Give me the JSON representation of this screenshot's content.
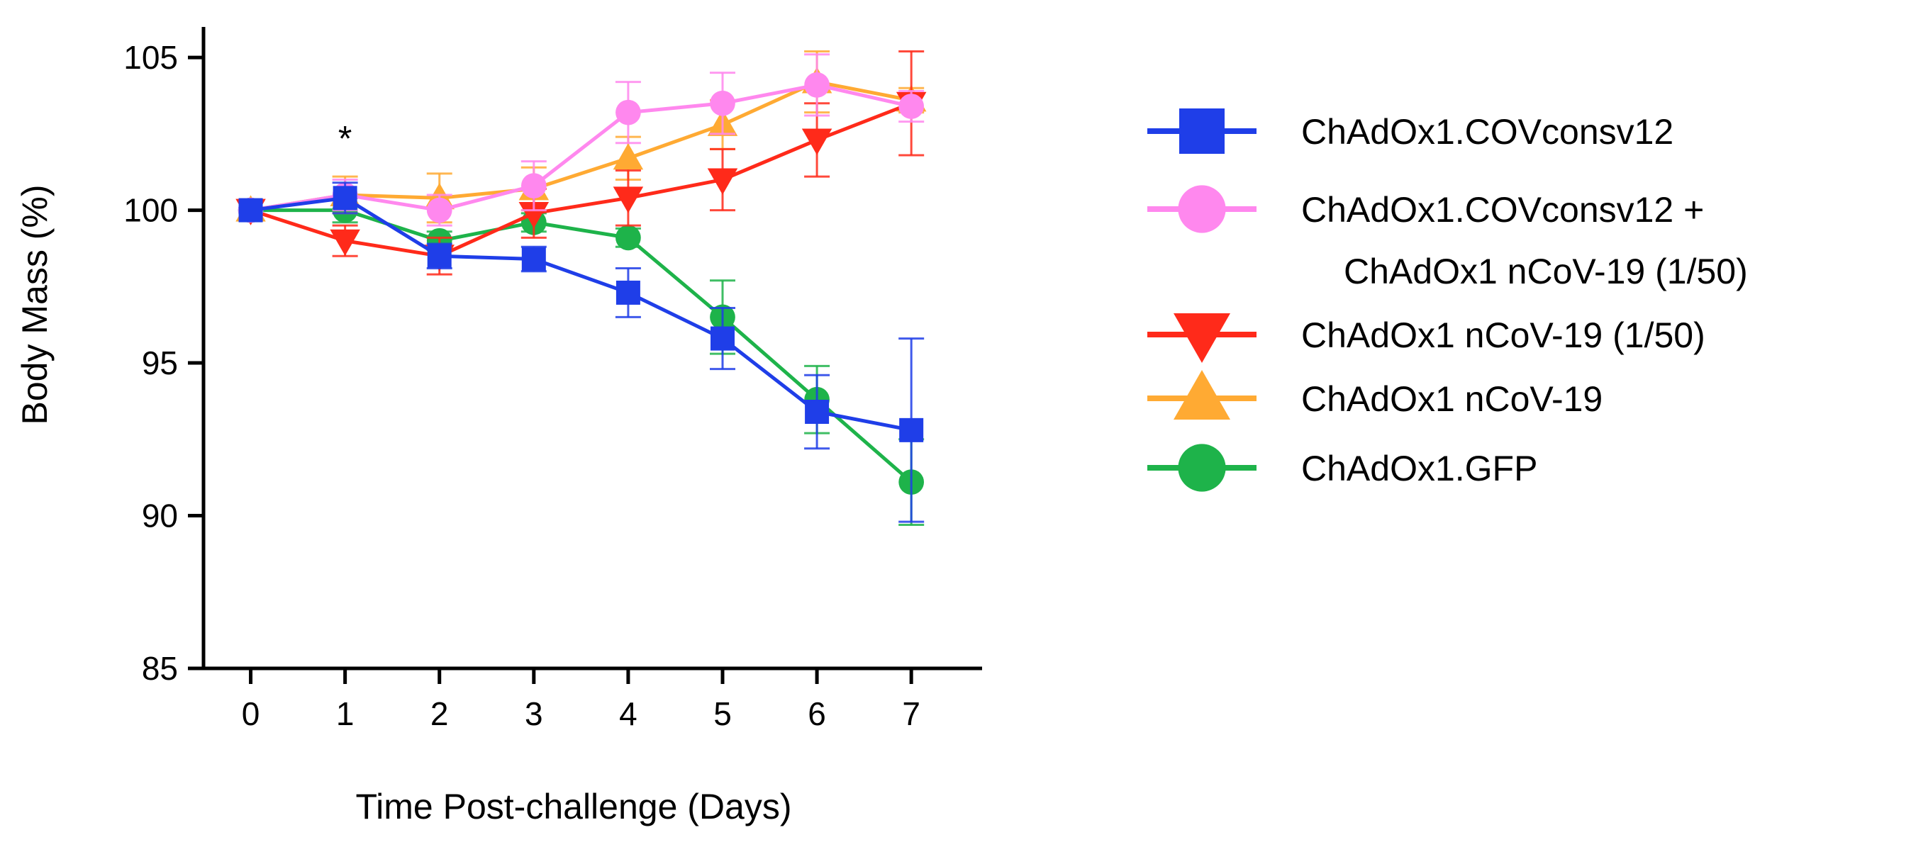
{
  "chart_data": {
    "type": "line",
    "title": "",
    "xlabel": "Time Post-challenge (Days)",
    "ylabel": "Body Mass (%)",
    "x": [
      0,
      1,
      2,
      3,
      4,
      5,
      6,
      7
    ],
    "xlim": [
      -0.5,
      7.75
    ],
    "ylim": [
      85,
      106
    ],
    "xticks": [
      "0",
      "1",
      "2",
      "3",
      "4",
      "5",
      "6",
      "7"
    ],
    "yticks": [
      "85",
      "90",
      "95",
      "100",
      "105"
    ],
    "grid": false,
    "legend_position": "right",
    "annotations": [
      {
        "text": "*",
        "x": 1,
        "y": 102.6
      }
    ],
    "series": [
      {
        "name": "ChAdOx1.COVconsv12",
        "color": "#1f3ee8",
        "marker": "square",
        "values": [
          100.0,
          100.4,
          98.5,
          98.4,
          97.3,
          95.8,
          93.4,
          92.8
        ],
        "errors": [
          0.0,
          0.5,
          0.4,
          0.4,
          0.8,
          1.0,
          1.2,
          3.0
        ]
      },
      {
        "name": "ChAdOx1.COVconsv12 + ChAdOx1 nCoV-19 (1/50)",
        "name_lines": [
          "ChAdOx1.COVconsv12 +",
          "ChAdOx1 nCoV-19 (1/50)"
        ],
        "color": "#ff88ee",
        "marker": "circle",
        "values": [
          100.0,
          100.5,
          100.0,
          100.8,
          103.2,
          103.5,
          104.1,
          103.4
        ],
        "errors": [
          0.0,
          0.5,
          0.5,
          0.8,
          1.0,
          1.0,
          1.0,
          0.5
        ]
      },
      {
        "name": "ChAdOx1 nCoV-19 (1/50)",
        "color": "#ff2a1a",
        "marker": "triangle-down",
        "values": [
          100.0,
          99.0,
          98.5,
          99.9,
          100.4,
          101.0,
          102.3,
          103.5
        ],
        "errors": [
          0.0,
          0.5,
          0.6,
          0.8,
          0.9,
          1.0,
          1.2,
          1.7
        ]
      },
      {
        "name": "ChAdOx1 nCoV-19",
        "color": "#ffaa33",
        "marker": "triangle-up",
        "values": [
          100.0,
          100.5,
          100.4,
          100.7,
          101.7,
          102.8,
          104.2,
          103.6
        ],
        "errors": [
          0.0,
          0.6,
          0.8,
          0.7,
          0.7,
          0.8,
          1.0,
          0.4
        ]
      },
      {
        "name": "ChAdOx1.GFP",
        "color": "#1eb34a",
        "marker": "circle",
        "values": [
          100.0,
          100.0,
          99.0,
          99.6,
          99.1,
          96.5,
          93.8,
          91.1
        ],
        "errors": [
          0.0,
          0.4,
          0.3,
          0.3,
          0.3,
          1.2,
          1.1,
          1.4
        ]
      }
    ]
  }
}
